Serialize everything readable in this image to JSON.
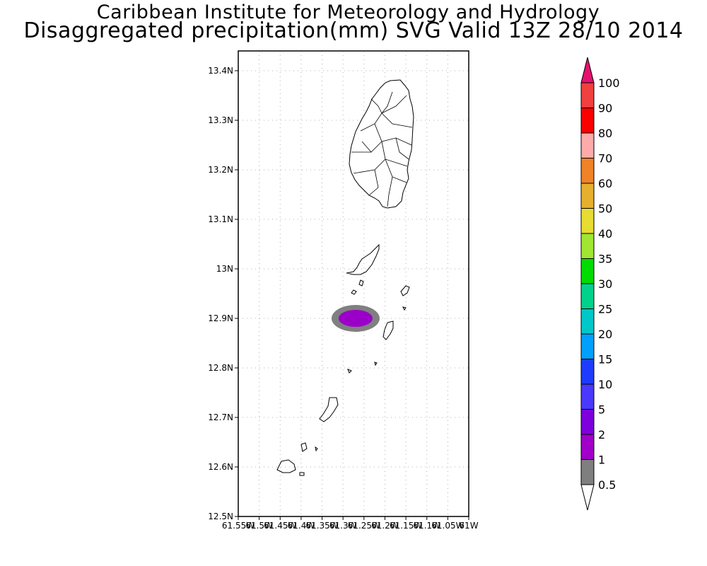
{
  "header": {
    "institute": "Caribbean Institute for Meteorology and Hydrology",
    "product": "Disaggregated precipitation(mm) SVG Valid 13Z 28/10 2014"
  },
  "map": {
    "lat_labels": [
      "13.4N",
      "13.3N",
      "13.2N",
      "13.1N",
      "13N",
      "12.9N",
      "12.8N",
      "12.7N",
      "12.6N",
      "12.5N"
    ],
    "lon_labels": [
      "61.55W",
      "61.5W",
      "61.45W",
      "61.4W",
      "61.35W",
      "61.3W",
      "61.25W",
      "61.2W",
      "61.15W",
      "61.1W",
      "61.05W",
      "61W"
    ],
    "lat_values": [
      13.4,
      13.3,
      13.2,
      13.1,
      13.0,
      12.9,
      12.8,
      12.7,
      12.6,
      12.5
    ],
    "lon_values": [
      -61.55,
      -61.5,
      -61.45,
      -61.4,
      -61.35,
      -61.3,
      -61.25,
      -61.2,
      -61.15,
      -61.1,
      -61.05,
      -61.0
    ],
    "lat_range": [
      12.5,
      13.44
    ],
    "lon_range": [
      -61.55,
      -61.0
    ],
    "precip_cell": {
      "center_lat": 12.9,
      "center_lon": -61.27,
      "outer_class": "0.5-1",
      "inner_class": "2-5",
      "outer_color": "#808080",
      "inner_color": "#9b00c8"
    }
  },
  "colorbar": {
    "labels": [
      "0.5",
      "1",
      "2",
      "5",
      "10",
      "15",
      "20",
      "25",
      "30",
      "35",
      "40",
      "50",
      "60",
      "70",
      "80",
      "90",
      "100"
    ],
    "colors": [
      "#7f7f7f",
      "#a000c8",
      "#7d00dc",
      "#4b38ff",
      "#1e3cff",
      "#00a0ff",
      "#00c8c8",
      "#00d28c",
      "#00dc00",
      "#a0e632",
      "#e6dc32",
      "#e6af2d",
      "#f08228",
      "#ffaaaa",
      "#fa0000",
      "#f04040"
    ],
    "top_arrow_color": "#e6106e",
    "bottom_arrow_color": "#ffffff"
  }
}
